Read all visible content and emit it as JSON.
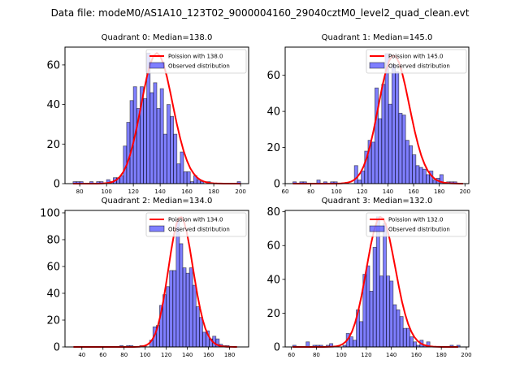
{
  "suptitle": "Data file: modeM0/AS1A10_123T02_9000004160_29040cztM0_level2_quad_clean.evt",
  "chart_data": [
    {
      "type": "bar",
      "title": "Quadrant 0: Median=138.0",
      "xlabel": "",
      "ylabel": "",
      "xlim": [
        69,
        206
      ],
      "ylim": [
        0,
        69
      ],
      "xticks": [
        80,
        100,
        120,
        140,
        160,
        180,
        200
      ],
      "yticks": [
        0,
        20,
        40,
        60
      ],
      "bin_start": 75,
      "bin_width": 2.5,
      "values": [
        1,
        1,
        1,
        0,
        0,
        1,
        0,
        1,
        1,
        0,
        2,
        1,
        3,
        3,
        4,
        19,
        31,
        42,
        49,
        38,
        49,
        43,
        66,
        46,
        51,
        38,
        48,
        25,
        40,
        34,
        25,
        10,
        16,
        6,
        6,
        1,
        4,
        2,
        1,
        0,
        1,
        0,
        0,
        0,
        0,
        0,
        0,
        0,
        0,
        1
      ],
      "poisson_mean": 138.0,
      "poisson_peak": 66,
      "legend": {
        "position": "upper-right",
        "entries": [
          {
            "label": "Poission with 138.0",
            "color": "#ff0000",
            "kind": "line"
          },
          {
            "label": "Observed distribution",
            "color": "#0000ff",
            "kind": "bar"
          }
        ]
      }
    },
    {
      "type": "bar",
      "title": "Quadrant 1: Median=145.0",
      "xlabel": "",
      "ylabel": "",
      "xlim": [
        60,
        203
      ],
      "ylim": [
        0,
        75.6
      ],
      "xticks": [
        60,
        80,
        100,
        120,
        140,
        160,
        180,
        200
      ],
      "yticks": [
        0,
        20,
        40,
        60
      ],
      "bin_start": 66,
      "bin_width": 2.66,
      "values": [
        1,
        0,
        1,
        1,
        0,
        0,
        0,
        2,
        0,
        1,
        0,
        1,
        1,
        0,
        0,
        0,
        0,
        0,
        10,
        2,
        7,
        18,
        24,
        23,
        53,
        36,
        55,
        72,
        44,
        66,
        62,
        39,
        38,
        24,
        21,
        16,
        10,
        9,
        8,
        5,
        7,
        2,
        3,
        5,
        0,
        1,
        1,
        1,
        0,
        0
      ],
      "poisson_mean": 145.0,
      "poisson_peak": 71,
      "legend": {
        "position": "upper-right",
        "entries": [
          {
            "label": "Poission with 145.0",
            "color": "#ff0000",
            "kind": "line"
          },
          {
            "label": "Observed distribution",
            "color": "#0000ff",
            "kind": "bar"
          }
        ]
      }
    },
    {
      "type": "bar",
      "title": "Quadrant 2: Median=134.0",
      "xlabel": "",
      "ylabel": "",
      "xlim": [
        24,
        198
      ],
      "ylim": [
        0,
        101.8
      ],
      "xticks": [
        40,
        60,
        80,
        100,
        120,
        140,
        160,
        180
      ],
      "yticks": [
        0,
        20,
        40,
        60,
        80,
        100
      ],
      "bin_start": 32,
      "bin_width": 3.14,
      "values": [
        0,
        0,
        0,
        0,
        0,
        0,
        0,
        0,
        0,
        0,
        0,
        0,
        0,
        0,
        1,
        0,
        1,
        1,
        0,
        0,
        1,
        1,
        0,
        5,
        15,
        16,
        31,
        39,
        45,
        57,
        57,
        95,
        77,
        59,
        55,
        59,
        46,
        30,
        22,
        11,
        12,
        6,
        8,
        6,
        2,
        1,
        1,
        0,
        0,
        0
      ],
      "poisson_mean": 134.0,
      "poisson_peak": 97,
      "legend": {
        "position": "upper-right",
        "entries": [
          {
            "label": "Poission with 134.0",
            "color": "#ff0000",
            "kind": "line"
          },
          {
            "label": "Observed distribution",
            "color": "#0000ff",
            "kind": "bar"
          }
        ]
      }
    },
    {
      "type": "bar",
      "title": "Quadrant 3: Median=132.0",
      "xlabel": "",
      "ylabel": "",
      "xlim": [
        55,
        202
      ],
      "ylim": [
        0,
        80.8
      ],
      "xticks": [
        60,
        80,
        100,
        120,
        140,
        160,
        180,
        200
      ],
      "yticks": [
        0,
        20,
        40,
        60,
        80
      ],
      "bin_start": 61,
      "bin_width": 2.68,
      "values": [
        1,
        0,
        0,
        0,
        3,
        0,
        1,
        1,
        1,
        0,
        1,
        2,
        0,
        0,
        0,
        1,
        8,
        6,
        4,
        22,
        15,
        43,
        48,
        33,
        59,
        77,
        42,
        73,
        42,
        39,
        25,
        22,
        18,
        11,
        11,
        6,
        3,
        1,
        4,
        1,
        3,
        0,
        0,
        0,
        0,
        0,
        0,
        1,
        0,
        1
      ],
      "poisson_mean": 132.0,
      "poisson_peak": 77,
      "legend": {
        "position": "upper-right",
        "entries": [
          {
            "label": "Poission with 132.0",
            "color": "#ff0000",
            "kind": "line"
          },
          {
            "label": "Observed distribution",
            "color": "#0000ff",
            "kind": "bar"
          }
        ]
      }
    }
  ],
  "colors": {
    "bar_fill": "#0000ff",
    "bar_edge": "#000000",
    "line": "#ff0000"
  }
}
